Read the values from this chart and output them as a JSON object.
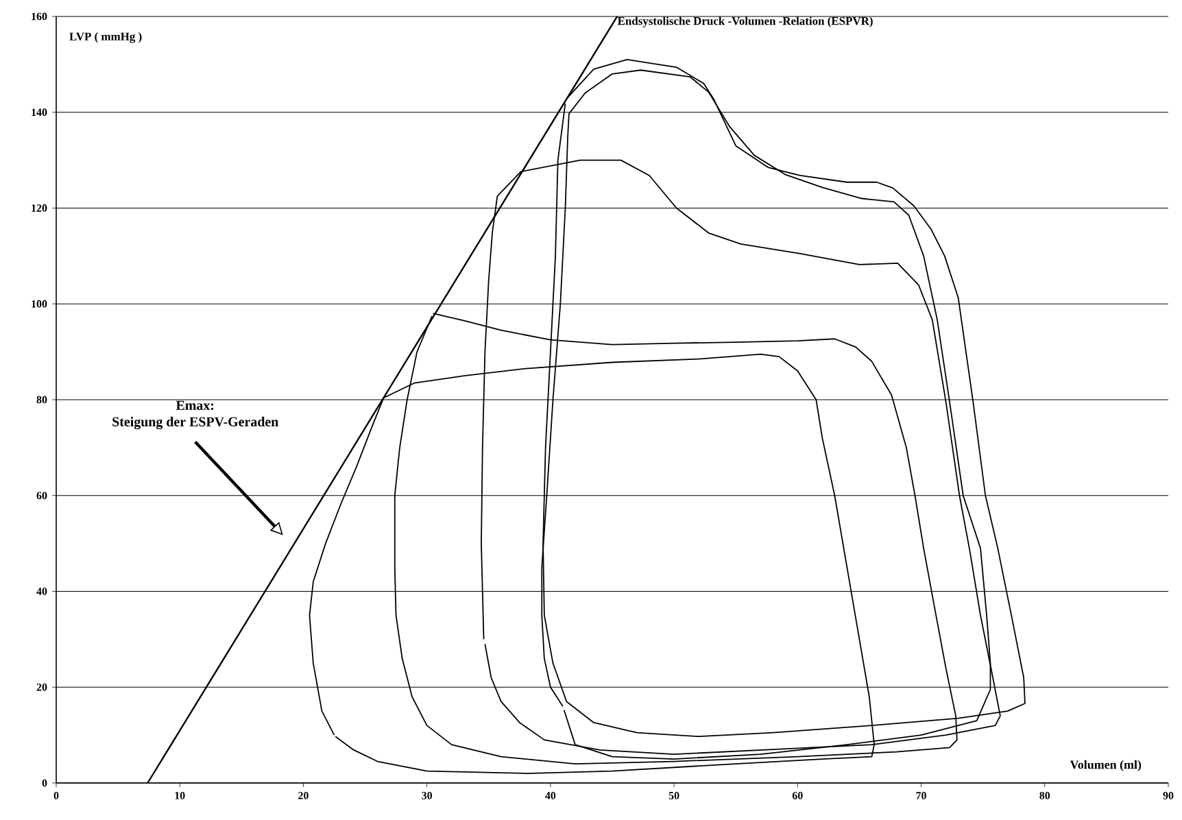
{
  "chart_data": {
    "type": "line",
    "xlabel": "Volumen (ml)",
    "ylabel": "LVP ( mmHg )",
    "xlim": [
      0,
      90
    ],
    "ylim": [
      0,
      160
    ],
    "xticks": [
      0,
      10,
      20,
      30,
      40,
      50,
      60,
      70,
      80,
      90
    ],
    "yticks": [
      0,
      20,
      40,
      60,
      80,
      100,
      120,
      140,
      160
    ],
    "grid": "y",
    "marker": "none",
    "line_style": "solid",
    "annotations": [
      "Emax:",
      "Steigung der ESPV-Geraden"
    ],
    "series": [
      {
        "name": "Endsystolische Druck -Volumen -Relation (ESPVR)",
        "color": "#000000",
        "x": [
          7.4,
          45.4
        ],
        "values": [
          0,
          160
        ]
      },
      {
        "color": "#000000",
        "x": [
          22.5,
          21.5,
          20.8,
          20.5,
          20.8,
          21.8,
          23,
          24.3,
          25.5,
          26.5,
          29,
          33,
          38,
          45,
          52,
          57,
          58.5,
          60,
          61.5,
          62,
          63,
          64,
          65,
          65.8,
          66.2,
          66,
          62,
          55,
          45,
          38,
          30,
          26,
          24,
          22.6
        ],
        "values": [
          10,
          15,
          25,
          35,
          42,
          50,
          58,
          66,
          74,
          80.4,
          83.5,
          85,
          86.5,
          87.8,
          88.5,
          89.5,
          89,
          86,
          80,
          72,
          60,
          45,
          30,
          18,
          8,
          5.5,
          5,
          4,
          2.5,
          2,
          2.5,
          4.5,
          7,
          9.7
        ]
      },
      {
        "color": "#000000",
        "x": [
          30.5,
          33,
          36,
          40,
          45,
          50,
          55,
          60,
          63,
          64.7,
          66,
          67.6,
          68.8,
          69.5,
          70.2,
          71.2,
          72,
          72.8,
          72.9,
          72.3,
          68,
          60,
          50,
          42,
          36,
          32,
          30,
          28.8,
          28,
          27.5,
          27.4,
          27.4,
          27.8,
          28.4,
          29.2,
          30.4
        ],
        "values": [
          98,
          96.5,
          94.5,
          92.5,
          91.5,
          91.8,
          92,
          92.3,
          92.7,
          91,
          88,
          81,
          70,
          60,
          49,
          35,
          24,
          14,
          9,
          7.4,
          6.5,
          5.5,
          4.5,
          4,
          5.5,
          8,
          12,
          18,
          26,
          35,
          45,
          60,
          70,
          80,
          90,
          97.4
        ]
      },
      {
        "color": "#000000",
        "x": [
          34.6,
          34.4,
          34.5,
          34.7,
          35,
          35.3,
          35.7,
          37.6,
          42.4,
          45.7,
          48,
          50.2,
          52.8,
          55.4,
          60.2,
          65,
          68.1,
          69.8,
          70.9,
          72,
          73.1,
          73.9,
          74.8,
          75.8,
          76.4,
          76,
          72,
          66,
          58,
          50,
          44,
          39.5,
          37.5,
          36,
          35.2,
          34.7
        ],
        "values": [
          30,
          50,
          70,
          90,
          105,
          115,
          122.5,
          127.6,
          130,
          130,
          126.8,
          120,
          114.8,
          112.5,
          110.5,
          108.2,
          108.5,
          103.9,
          96.7,
          79.6,
          60,
          49,
          35,
          22,
          14,
          12,
          10,
          8,
          7,
          6,
          6.9,
          9,
          12.6,
          17,
          22,
          29
        ]
      },
      {
        "color": "#000000",
        "x": [
          41,
          40,
          39.5,
          39.3,
          39.3,
          39.7,
          40.2,
          40.8,
          41.2,
          41.4,
          41.5,
          42.8,
          45,
          47.3,
          51.3,
          52.8,
          54.5,
          56.5,
          59,
          62,
          65.2,
          67.8,
          69,
          70.2,
          71.3,
          72.3,
          73.4,
          74.8,
          75.3,
          75.6,
          75.6,
          74.5,
          70,
          64,
          57,
          50,
          45,
          42,
          41.1
        ],
        "values": [
          16,
          20,
          26,
          35,
          45,
          60,
          80,
          100,
          120,
          135,
          139.7,
          144,
          148,
          148.8,
          147.4,
          144.2,
          137,
          131,
          127,
          124.3,
          122,
          121.3,
          118.5,
          110,
          96.7,
          79.6,
          60,
          49,
          35,
          25,
          19.5,
          13,
          10,
          8,
          6,
          5,
          5.5,
          8,
          15.2
        ]
      },
      {
        "color": "#000000",
        "x": [
          41.3,
          43.5,
          46.2,
          50.2,
          52.4,
          53.2,
          55,
          57.6,
          60.2,
          64,
          66.4,
          67.7,
          69.4,
          70.8,
          71.9,
          73,
          74.2,
          75.2,
          76.2,
          77.3,
          78.3,
          78.4,
          77,
          73,
          66,
          58,
          52,
          47,
          43.5,
          41.3,
          40.2,
          39.5,
          39.4,
          39.6,
          40,
          40.4,
          40.6,
          41.2
        ],
        "values": [
          142.8,
          149,
          151,
          149.4,
          146,
          142.8,
          133,
          128.5,
          126.8,
          125.4,
          125.4,
          124.2,
          120.5,
          115.6,
          110,
          101.3,
          79.6,
          60,
          49,
          35,
          22,
          16.6,
          15,
          13.5,
          12,
          10.5,
          9.7,
          10.5,
          12.6,
          17,
          25,
          35,
          50,
          70,
          90,
          110,
          130,
          141.8
        ]
      }
    ]
  }
}
